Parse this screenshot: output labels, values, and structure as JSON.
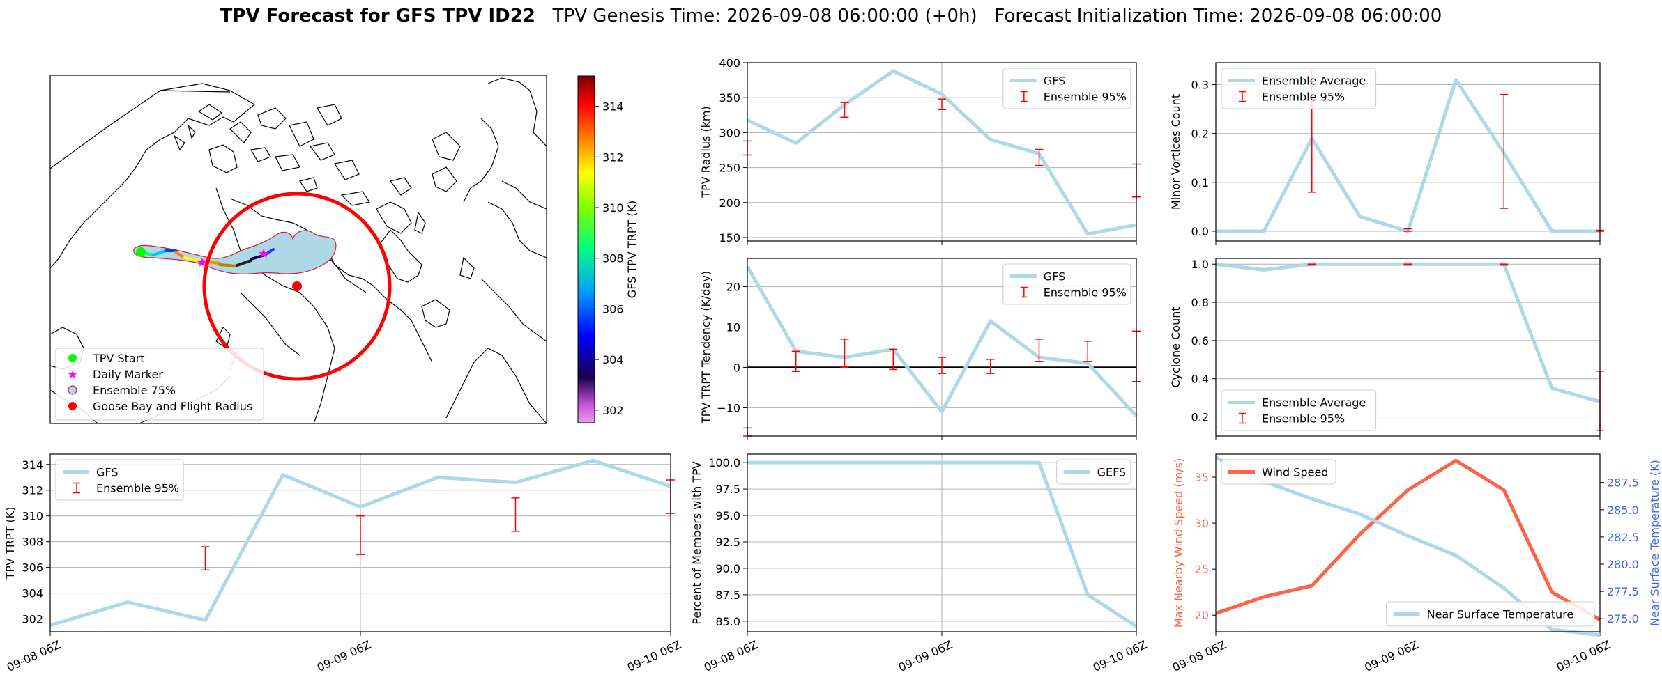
{
  "title": {
    "bold": "TPV Forecast for GFS TPV ID22",
    "rest": "   TPV Genesis Time: 2026-09-08 06:00:00 (+0h)   Forecast Initialization Time: 2026-09-08 06:00:00"
  },
  "map": {
    "colorbar_label": "GFS TPV TRPT (K)",
    "colorbar_ticks": [
      "302",
      "304",
      "306",
      "308",
      "310",
      "312",
      "314"
    ],
    "colorbar_range": [
      301.5,
      315.2
    ],
    "legend": [
      {
        "label": "TPV Start",
        "marker": "circle",
        "color": "#00ff00"
      },
      {
        "label": "Daily Marker",
        "marker": "star",
        "color": "#ff00ff"
      },
      {
        "label": "Ensemble 75%",
        "marker": "circle-outline",
        "color": "#add8e6"
      },
      {
        "label": "Goose Bay and Flight Radius",
        "marker": "circle",
        "color": "#ff0000"
      }
    ],
    "colors": {
      "ensemble_fill": "#add8e6",
      "ensemble_edge": "#dc143c",
      "radius": "#ff0000",
      "start": "#00ff00",
      "marker": "#ff00ff"
    }
  },
  "colors": {
    "gfs": "#add8e6",
    "err": "#ff0000",
    "wind": "#ff6347",
    "temp_axis": "#4169e1"
  },
  "chart_data": [
    {
      "id": "radius",
      "type": "line",
      "ylabel": "TPV Radius (km)",
      "ylim": [
        145,
        400
      ],
      "yticks": [
        "150",
        "200",
        "250",
        "300",
        "350",
        "400"
      ],
      "legend": [
        "GFS",
        "Ensemble 95%"
      ],
      "legend_pos": "upper-right",
      "x_labels": [
        "09-08 06Z",
        "09-09 06Z",
        "09-10 06Z"
      ],
      "grid": true,
      "series": [
        {
          "name": "GFS",
          "values": [
            318,
            285,
            340,
            388,
            355,
            290,
            270,
            155,
            168
          ]
        }
      ],
      "errorbars": [
        {
          "i": 0,
          "low": 268,
          "high": 288
        },
        {
          "i": 2,
          "low": 322,
          "high": 343
        },
        {
          "i": 4,
          "low": 333,
          "high": 348
        },
        {
          "i": 6,
          "low": 253,
          "high": 276
        },
        {
          "i": 8,
          "low": 208,
          "high": 255
        }
      ]
    },
    {
      "id": "minor",
      "type": "line",
      "ylabel": "Minor Vortices Count",
      "ylim": [
        -0.02,
        0.345
      ],
      "yticks": [
        "0.0",
        "0.1",
        "0.2",
        "0.3"
      ],
      "legend": [
        "Ensemble Average",
        "Ensemble 95%"
      ],
      "legend_pos": "upper-left",
      "x_labels": [
        "09-08 06Z",
        "09-09 06Z",
        "09-10 06Z"
      ],
      "grid": true,
      "series": [
        {
          "name": "Ensemble Average",
          "values": [
            0,
            0,
            0.19,
            0.03,
            0.0,
            0.31,
            0.16,
            0,
            0
          ]
        }
      ],
      "errorbars": [
        {
          "i": 2,
          "low": 0.08,
          "high": 0.33
        },
        {
          "i": 4,
          "low": 0,
          "high": 0.005
        },
        {
          "i": 6,
          "low": 0.047,
          "high": 0.28
        },
        {
          "i": 8,
          "low": 0,
          "high": 0.002
        }
      ]
    },
    {
      "id": "tendency",
      "type": "line",
      "ylabel": "TPV TRPT Tendency (K/day)",
      "ylim": [
        -17,
        27
      ],
      "yticks": [
        "−10",
        "0",
        "10",
        "20"
      ],
      "legend": [
        "GFS",
        "Ensemble 95%"
      ],
      "legend_pos": "upper-right",
      "x_labels": [
        "09-08 06Z",
        "09-09 06Z",
        "09-10 06Z"
      ],
      "grid": true,
      "zero_line": true,
      "series": [
        {
          "name": "GFS",
          "values": [
            25,
            4,
            2.5,
            4.5,
            -11,
            11.5,
            2.5,
            1,
            -12
          ]
        }
      ],
      "errorbars": [
        {
          "i": 0,
          "low": -17,
          "high": -15
        },
        {
          "i": 1,
          "low": -1,
          "high": 4
        },
        {
          "i": 2,
          "low": 0,
          "high": 7
        },
        {
          "i": 3,
          "low": -0.5,
          "high": 4.5
        },
        {
          "i": 4,
          "low": -1.5,
          "high": 2.5
        },
        {
          "i": 5,
          "low": -1.5,
          "high": 2
        },
        {
          "i": 6,
          "low": 1.5,
          "high": 7
        },
        {
          "i": 7,
          "low": 1.5,
          "high": 6.5
        },
        {
          "i": 8,
          "low": -3.5,
          "high": 9
        }
      ]
    },
    {
      "id": "cyclone",
      "type": "line",
      "ylabel": "Cyclone Count",
      "ylim": [
        0.1,
        1.03
      ],
      "yticks": [
        "0.2",
        "0.4",
        "0.6",
        "0.8",
        "1.0"
      ],
      "legend": [
        "Ensemble Average",
        "Ensemble 95%"
      ],
      "legend_pos": "lower-left",
      "x_labels": [
        "09-08 06Z",
        "09-09 06Z",
        "09-10 06Z"
      ],
      "grid": true,
      "series": [
        {
          "name": "Ensemble Average",
          "values": [
            1.0,
            0.97,
            1.0,
            1.0,
            1.0,
            1.0,
            1.0,
            0.35,
            0.28
          ]
        }
      ],
      "errorbars": [
        {
          "i": 2,
          "low": 0.995,
          "high": 1.0
        },
        {
          "i": 4,
          "low": 0.995,
          "high": 1.0
        },
        {
          "i": 6,
          "low": 0.995,
          "high": 1.0
        },
        {
          "i": 8,
          "low": 0.13,
          "high": 0.44
        }
      ]
    },
    {
      "id": "trpt",
      "type": "line",
      "ylabel": "TPV TRPT (K)",
      "ylim": [
        301,
        314.8
      ],
      "yticks": [
        "302",
        "304",
        "306",
        "308",
        "310",
        "312",
        "314"
      ],
      "legend": [
        "GFS",
        "Ensemble 95%"
      ],
      "legend_pos": "upper-left",
      "x_labels": [
        "09-08 06Z",
        "09-09 06Z",
        "09-10 06Z"
      ],
      "grid": true,
      "series": [
        {
          "name": "GFS",
          "values": [
            301.5,
            303.3,
            301.9,
            313.2,
            310.7,
            313.0,
            312.6,
            314.3,
            312.3
          ]
        }
      ],
      "errorbars": [
        {
          "i": 2,
          "low": 305.8,
          "high": 307.6
        },
        {
          "i": 4,
          "low": 307.0,
          "high": 310.0
        },
        {
          "i": 6,
          "low": 308.8,
          "high": 311.4
        },
        {
          "i": 8,
          "low": 310.2,
          "high": 312.8
        }
      ]
    },
    {
      "id": "percent",
      "type": "line",
      "ylabel": "Percent of Members with TPV",
      "ylim": [
        84,
        100.8
      ],
      "yticks": [
        "85.0",
        "87.5",
        "90.0",
        "92.5",
        "95.0",
        "97.5",
        "100.0"
      ],
      "legend": [
        "GEFS"
      ],
      "legend_pos": "upper-right",
      "x_labels": [
        "09-08 06Z",
        "09-09 06Z",
        "09-10 06Z"
      ],
      "grid": true,
      "series": [
        {
          "name": "GEFS",
          "values": [
            100,
            100,
            100,
            100,
            100,
            100,
            100,
            87.5,
            84.5
          ]
        }
      ],
      "errorbars": []
    },
    {
      "id": "wind",
      "type": "line",
      "ylabel": "Max Nearby Wind Speed (m/s)",
      "ylim": [
        18.2,
        37.5
      ],
      "yticks": [
        "20",
        "25",
        "30",
        "35"
      ],
      "ylabel_right": "Near Surface Temperature (K)",
      "ylim_right": [
        273.8,
        290.1
      ],
      "yticks_right": [
        "275.0",
        "277.5",
        "280.0",
        "282.5",
        "285.0",
        "287.5"
      ],
      "legend": [
        "Wind Speed"
      ],
      "legend_right": [
        "Near Surface Temperature"
      ],
      "x_labels": [
        "09-08 06Z",
        "09-09 06Z",
        "09-10 06Z"
      ],
      "grid": false,
      "series": [
        {
          "name": "Wind Speed",
          "axis": "left",
          "values": [
            20.2,
            22.0,
            23.2,
            28.8,
            33.6,
            36.8,
            33.6,
            22.5,
            19.5
          ]
        },
        {
          "name": "Near Surface Temperature",
          "axis": "right",
          "values": [
            289.8,
            287.6,
            286.0,
            284.6,
            282.6,
            280.8,
            277.8,
            274.0,
            273.5
          ]
        }
      ],
      "errorbars": []
    }
  ]
}
